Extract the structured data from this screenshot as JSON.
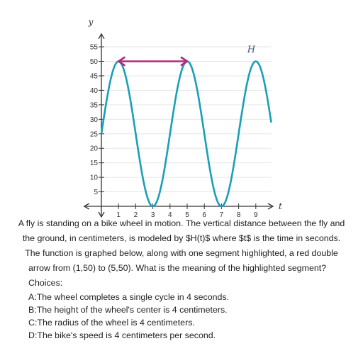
{
  "chart_data": {
    "type": "line",
    "xlabel": "t",
    "ylabel": "y",
    "x_ticks": [
      1,
      2,
      3,
      4,
      5,
      6,
      7,
      8,
      9
    ],
    "y_ticks": [
      5,
      10,
      15,
      20,
      25,
      30,
      35,
      40,
      45,
      50,
      55
    ],
    "xlim": [
      -1,
      10
    ],
    "ylim": [
      0,
      58
    ],
    "series": [
      {
        "name": "H",
        "formula": "H(t) = 25 + 25*cos(pi*(t-1)/2)",
        "x": [
          0,
          0.5,
          1,
          1.5,
          2,
          2.5,
          3,
          3.5,
          4,
          4.5,
          5,
          5.5,
          6,
          6.5,
          7,
          7.5,
          8,
          8.5,
          9,
          9.5
        ],
        "values": [
          25,
          42.7,
          50,
          42.7,
          25,
          7.3,
          0,
          7.3,
          25,
          42.7,
          50,
          42.7,
          25,
          7.3,
          0,
          7.3,
          25,
          42.7,
          50,
          42.7
        ],
        "color": "#1a9fb8"
      }
    ],
    "highlight": {
      "type": "double-arrow",
      "from": [
        1,
        50
      ],
      "to": [
        5,
        50
      ],
      "color": "#b02a7a"
    }
  },
  "question": {
    "lines": [
      "A fly is standing on a bike wheel in motion. The vertical distance between the fly and",
      "the ground, in centimeters, is modeled by $H(t)$ where $t$ is the time in seconds.",
      "The function is graphed below, along with one segment highlighted, a red double",
      "arrow from (1,50) to (5,50). What is the meaning of the highlighted segment?"
    ],
    "choices_label": "Choices:",
    "choices": [
      "A:The wheel completes a single cycle in 4 seconds.",
      "B:The height of the wheel's center is 4 centimeters.",
      "C:The radius of the wheel is 4 centimeters.",
      "D:The bike's speed is 4 centimeters per second."
    ]
  }
}
